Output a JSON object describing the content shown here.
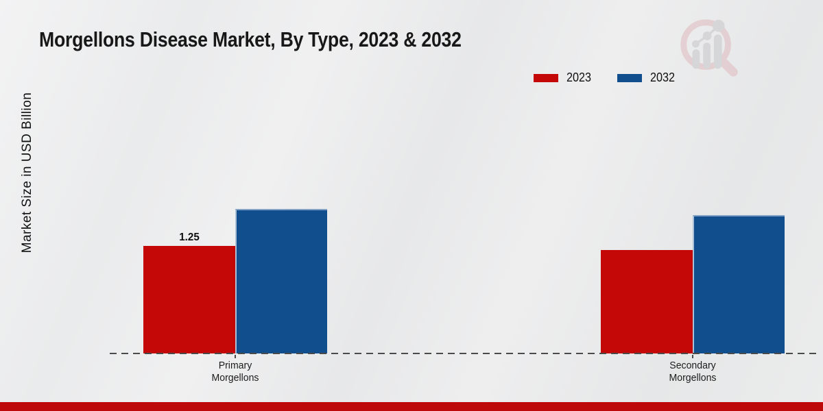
{
  "page": {
    "background": "#e9eaeb",
    "footer_bar_color": "#bd0909"
  },
  "title": "Morgellons Disease Market, By Type, 2023 & 2032",
  "y_axis_label": "Market Size in USD Billion",
  "legend": {
    "position": "top-right",
    "items": [
      {
        "label": "2023",
        "color": "#c40707"
      },
      {
        "label": "2032",
        "color": "#114e8e"
      }
    ]
  },
  "watermark_icon": "magnifier-bar-chart-logo",
  "chart_data": {
    "type": "bar",
    "title": "Morgellons Disease Market, By Type, 2023 & 2032",
    "ylabel": "Market Size in USD Billion",
    "units": "USD Billion",
    "categories": [
      "Primary Morgellons",
      "Secondary Morgellons"
    ],
    "category_lines": [
      [
        "Primary",
        "Morgellons"
      ],
      [
        "Secondary",
        "Morgellons"
      ]
    ],
    "series": [
      {
        "name": "2023",
        "color": "#c40707",
        "values": [
          1.25,
          1.2
        ]
      },
      {
        "name": "2032",
        "color": "#114e8e",
        "values": [
          1.68,
          1.61
        ]
      }
    ],
    "value_labels": [
      {
        "series": "2023",
        "category_index": 0,
        "text": "1.25"
      }
    ],
    "grid": false,
    "baseline_style": "dashed",
    "legend_position": "top-right",
    "ylim": [
      0,
      2
    ]
  }
}
